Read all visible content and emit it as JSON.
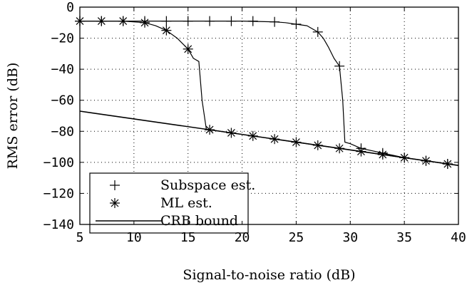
{
  "chart_data": {
    "type": "line",
    "title": "",
    "xlabel": "Signal-to-noise ratio (dB)",
    "ylabel": "RMS error (dB)",
    "xlim": [
      5,
      40
    ],
    "ylim": [
      -140,
      0
    ],
    "xticks": [
      5,
      10,
      15,
      20,
      25,
      30,
      35,
      40
    ],
    "yticks": [
      0,
      -20,
      -40,
      -60,
      -80,
      -100,
      -120,
      -140
    ],
    "xtick_labels": [
      "5",
      "10",
      "15",
      "20",
      "25",
      "30",
      "35",
      "40"
    ],
    "ytick_labels": [
      "0",
      "−20",
      "−40",
      "−60",
      "−80",
      "−100",
      "−120",
      "−140"
    ],
    "grid": true,
    "legend_position": "bottom-left",
    "series": [
      {
        "name": "Subspace est.",
        "marker": "plus",
        "line": [
          [
            5,
            -9
          ],
          [
            10,
            -9
          ],
          [
            15,
            -9
          ],
          [
            20,
            -9
          ],
          [
            23,
            -9.5
          ],
          [
            24,
            -10
          ],
          [
            25,
            -11
          ],
          [
            26,
            -12
          ],
          [
            27,
            -16
          ],
          [
            27.5,
            -20
          ],
          [
            28,
            -26
          ],
          [
            28.5,
            -33
          ],
          [
            29,
            -38
          ],
          [
            29.3,
            -60
          ],
          [
            29.5,
            -87
          ],
          [
            30,
            -88
          ],
          [
            31,
            -91
          ],
          [
            35,
            -97
          ],
          [
            40,
            -102
          ]
        ],
        "markers": [
          [
            5,
            -9
          ],
          [
            7,
            -9
          ],
          [
            9,
            -9
          ],
          [
            11,
            -9
          ],
          [
            13,
            -9
          ],
          [
            15,
            -9
          ],
          [
            17,
            -9
          ],
          [
            19,
            -9
          ],
          [
            21,
            -9
          ],
          [
            23,
            -9.5
          ],
          [
            25,
            -11
          ],
          [
            27,
            -16
          ],
          [
            29,
            -38
          ],
          [
            31,
            -91
          ],
          [
            33,
            -94
          ],
          [
            35,
            -97
          ],
          [
            37,
            -99
          ],
          [
            39,
            -101
          ]
        ]
      },
      {
        "name": "ML est.",
        "marker": "star",
        "line": [
          [
            5,
            -9
          ],
          [
            9,
            -9
          ],
          [
            11,
            -10
          ],
          [
            12,
            -12
          ],
          [
            13,
            -15
          ],
          [
            14,
            -20
          ],
          [
            15,
            -27
          ],
          [
            15.5,
            -33
          ],
          [
            16,
            -35
          ],
          [
            16.3,
            -60
          ],
          [
            16.7,
            -79
          ],
          [
            17,
            -79
          ],
          [
            19,
            -81
          ],
          [
            21,
            -83
          ],
          [
            23,
            -85
          ],
          [
            25,
            -87
          ],
          [
            27,
            -89
          ],
          [
            29,
            -91
          ],
          [
            31,
            -93
          ],
          [
            33,
            -95
          ],
          [
            35,
            -97
          ],
          [
            37,
            -99
          ],
          [
            39,
            -101
          ],
          [
            40,
            -102
          ]
        ],
        "markers": [
          [
            5,
            -9
          ],
          [
            7,
            -9
          ],
          [
            9,
            -9
          ],
          [
            11,
            -10
          ],
          [
            13,
            -15
          ],
          [
            15,
            -27
          ],
          [
            17,
            -79
          ],
          [
            19,
            -81
          ],
          [
            21,
            -83
          ],
          [
            23,
            -85
          ],
          [
            25,
            -87
          ],
          [
            27,
            -89
          ],
          [
            29,
            -91
          ],
          [
            31,
            -93
          ],
          [
            33,
            -95
          ],
          [
            35,
            -97
          ],
          [
            37,
            -99
          ],
          [
            39,
            -101
          ]
        ]
      },
      {
        "name": "CRB bound",
        "marker": "none",
        "line": [
          [
            5,
            -67
          ],
          [
            40,
            -102
          ]
        ]
      }
    ]
  }
}
